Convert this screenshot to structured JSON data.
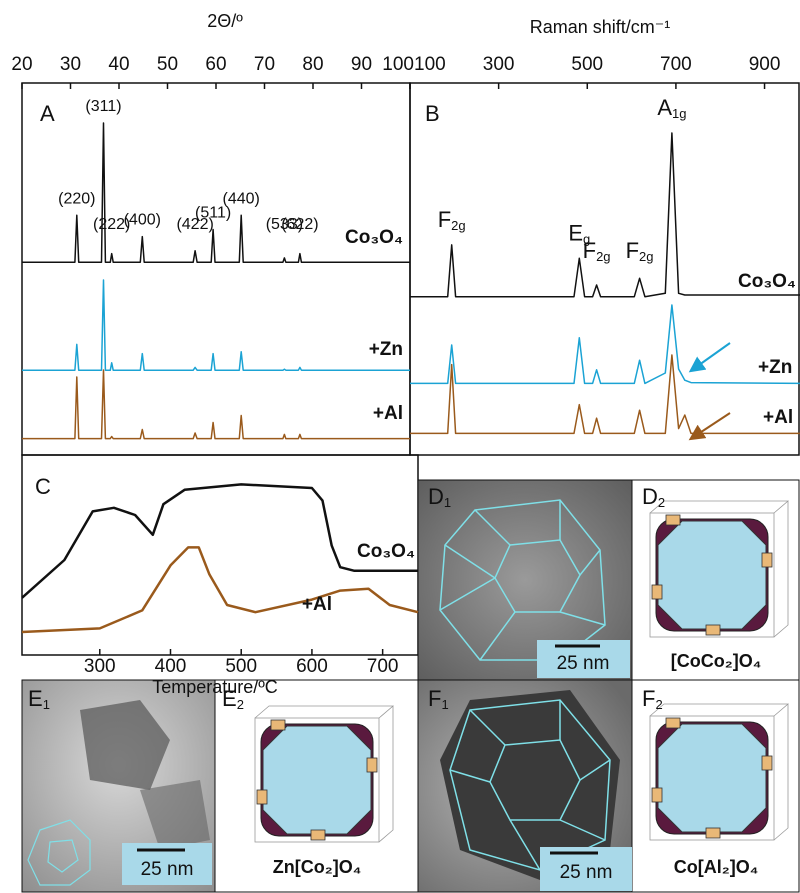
{
  "chart_data": [
    {
      "type": "line",
      "panel": "A",
      "xlabel": "2Θ/º",
      "xlim": [
        20,
        100
      ],
      "xticks": [
        20,
        30,
        40,
        50,
        60,
        70,
        80,
        90,
        100
      ],
      "x": [
        20,
        30.9,
        31.3,
        31.7,
        36.4,
        36.8,
        37.2,
        38.2,
        38.5,
        38.8,
        44.4,
        44.8,
        45.2,
        55.3,
        55.7,
        56.1,
        59.0,
        59.4,
        59.8,
        64.8,
        65.2,
        65.6,
        73.8,
        74.1,
        74.4,
        77.0,
        77.3,
        77.6,
        100
      ],
      "series": [
        {
          "name": "Co₃O₄",
          "color": "#111111",
          "values": [
            2,
            2,
            35,
            2,
            2,
            100,
            2,
            2,
            8,
            2,
            2,
            20,
            2,
            2,
            10,
            2,
            2,
            25,
            2,
            2,
            35,
            2,
            2,
            5,
            2,
            2,
            8,
            2,
            2
          ]
        },
        {
          "name": "+Zn",
          "color": "#1ba3d4",
          "values": [
            2,
            2,
            30,
            2,
            2,
            100,
            2,
            2,
            10,
            2,
            2,
            20,
            2,
            2,
            5,
            2,
            2,
            20,
            2,
            2,
            22,
            2,
            2,
            3,
            2,
            2,
            5,
            2,
            2
          ]
        },
        {
          "name": "+Al",
          "color": "#9a5a1c",
          "values": [
            2,
            2,
            90,
            2,
            2,
            100,
            2,
            2,
            5,
            2,
            2,
            15,
            2,
            2,
            10,
            2,
            2,
            25,
            2,
            2,
            35,
            2,
            2,
            8,
            2,
            2,
            8,
            2,
            2
          ]
        }
      ],
      "peak_labels": [
        {
          "text": "(220)",
          "x": 31.3
        },
        {
          "text": "(311)",
          "x": 36.8
        },
        {
          "text": "(222)",
          "x": 38.5
        },
        {
          "text": "(400)",
          "x": 44.8
        },
        {
          "text": "(422)",
          "x": 55.7
        },
        {
          "text": "(511)",
          "x": 59.4
        },
        {
          "text": "(440)",
          "x": 65.2
        },
        {
          "text": "(533)",
          "x": 74.1
        },
        {
          "text": "(622)",
          "x": 77.3
        }
      ]
    },
    {
      "type": "line",
      "panel": "B",
      "xlabel": "Raman shift/cm⁻¹",
      "xlim": [
        100,
        980
      ],
      "xticks": [
        100,
        300,
        500,
        700,
        900
      ],
      "x": [
        100,
        185,
        194,
        203,
        470,
        482,
        494,
        512,
        521,
        530,
        606,
        618,
        630,
        676,
        691,
        706,
        720,
        734,
        980
      ],
      "series": [
        {
          "name": "Co₃O₄",
          "color": "#111111",
          "values": [
            2,
            2,
            33,
            2,
            2,
            25,
            2,
            2,
            9,
            2,
            2,
            13,
            2,
            4,
            100,
            4,
            3,
            3,
            3
          ]
        },
        {
          "name": "+Zn",
          "color": "#1ba3d4",
          "values": [
            2,
            2,
            50,
            2,
            2,
            59,
            2,
            2,
            19,
            2,
            2,
            31,
            2,
            15,
            100,
            20,
            6,
            3,
            2
          ]
        },
        {
          "name": "+Al",
          "color": "#9a5a1c",
          "values": [
            2,
            2,
            88,
            2,
            2,
            38,
            2,
            2,
            21,
            2,
            2,
            31,
            2,
            2,
            100,
            8,
            25,
            2,
            2
          ]
        }
      ],
      "peak_labels": [
        {
          "text": "F",
          "sub": "2g",
          "x": 194
        },
        {
          "text": "E",
          "sub": "g",
          "x": 482
        },
        {
          "text": "F",
          "sub": "2g",
          "x": 521
        },
        {
          "text": "F",
          "sub": "2g",
          "x": 618
        },
        {
          "text": "A",
          "sub": "1g",
          "x": 691
        }
      ]
    },
    {
      "type": "line",
      "panel": "C",
      "xlabel": "Temperature/ºC",
      "xlim": [
        190,
        750
      ],
      "xticks": [
        300,
        400,
        500,
        600,
        700
      ],
      "series": [
        {
          "name": "Co₃O₄",
          "color": "#111111",
          "x": [
            190,
            250,
            290,
            320,
            350,
            375,
            390,
            420,
            500,
            600,
            615,
            628,
            640,
            660,
            750
          ],
          "values": [
            29,
            50,
            77,
            79,
            75,
            64,
            81,
            89,
            92,
            90,
            83,
            58,
            46,
            44,
            44
          ]
        },
        {
          "name": "+Al",
          "color": "#9a5a1c",
          "x": [
            190,
            300,
            360,
            400,
            425,
            440,
            455,
            480,
            520,
            600,
            640,
            680,
            710,
            750
          ],
          "values": [
            10,
            12,
            22,
            47,
            57,
            57,
            42,
            25,
            21,
            28,
            33,
            34,
            25,
            21
          ]
        }
      ]
    }
  ],
  "image_panels": [
    {
      "label": {
        "text": "D",
        "sub": "1"
      },
      "scale_bar": "25 nm"
    },
    {
      "label": {
        "text": "D",
        "sub": "2"
      },
      "caption": "[CoCo₂]O₄"
    },
    {
      "label": {
        "text": "E",
        "sub": "1"
      },
      "scale_bar": "25 nm"
    },
    {
      "label": {
        "text": "E",
        "sub": "2"
      },
      "caption": "Zn[Co₂]O₄"
    },
    {
      "label": {
        "text": "F",
        "sub": "1"
      },
      "scale_bar": "25 nm"
    },
    {
      "label": {
        "text": "F",
        "sub": "2"
      },
      "caption": "Co[Al₂]O₄"
    }
  ]
}
